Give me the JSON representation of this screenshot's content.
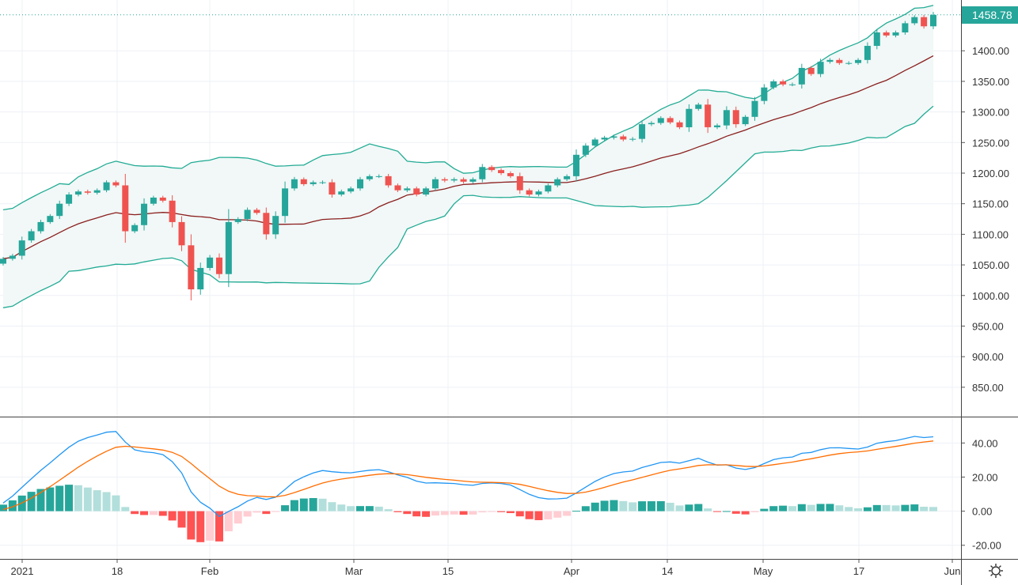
{
  "chart_data": [
    {
      "type": "candlestick",
      "indicators": [
        "Bollinger Bands (20, 2)",
        "SMA basis"
      ],
      "close": [
        1060,
        1065,
        1090,
        1105,
        1120,
        1130,
        1150,
        1165,
        1170,
        1168,
        1172,
        1185,
        1180,
        1105,
        1115,
        1150,
        1160,
        1155,
        1120,
        1082,
        1010,
        1045,
        1062,
        1035,
        1120,
        1125,
        1140,
        1135,
        1100,
        1130,
        1175,
        1190,
        1182,
        1185,
        1185,
        1165,
        1170,
        1175,
        1190,
        1195,
        1195,
        1180,
        1172,
        1175,
        1165,
        1175,
        1190,
        1188,
        1190,
        1186,
        1190,
        1210,
        1205,
        1200,
        1195,
        1172,
        1165,
        1170,
        1180,
        1190,
        1195,
        1230,
        1245,
        1255,
        1258,
        1260,
        1255,
        1256,
        1280,
        1282,
        1290,
        1283,
        1275,
        1305,
        1312,
        1275,
        1278,
        1303,
        1280,
        1292,
        1318,
        1340,
        1350,
        1345,
        1345,
        1372,
        1362,
        1382,
        1385,
        1380,
        1380,
        1385,
        1408,
        1430,
        1425,
        1430,
        1445,
        1455,
        1440,
        1458.78
      ],
      "first_open": 1052,
      "last_price": "1458.78",
      "ylim": [
        802,
        1483
      ],
      "y_ticks": [
        "1400.00",
        "1350.00",
        "1300.00",
        "1250.00",
        "1200.00",
        "1150.00",
        "1100.00",
        "1050.00",
        "1000.00",
        "950.00",
        "900.00",
        "850.00"
      ],
      "y_tick_values": [
        1400,
        1350,
        1300,
        1250,
        1200,
        1150,
        1100,
        1050,
        1000,
        950,
        900,
        850
      ],
      "grid": true
    },
    {
      "type": "macd",
      "ylim": [
        -28,
        55
      ],
      "y_ticks": [
        "40.00",
        "20.00",
        "0.00",
        "-20.00"
      ],
      "y_tick_values": [
        40,
        20,
        0,
        -20
      ],
      "grid": true
    }
  ],
  "time_axis": {
    "labels": [
      "2021",
      "18",
      "Feb",
      "Mar",
      "15",
      "Apr",
      "14",
      "May",
      "17",
      "Jun"
    ]
  },
  "colors": {
    "up": "#26a69a",
    "down": "#ef5350",
    "band": "#22ab94",
    "band_fill": "#f1f8f7",
    "basis": "#8b1e1e",
    "macd": "#2196f3",
    "signal": "#ff6d00",
    "hist_up_strong": "#26a69a",
    "hist_up_weak": "#b2dfdb",
    "hist_down_strong": "#ff5252",
    "hist_down_weak": "#ffcdd2",
    "grid": "#eef1f6",
    "price_label_bg": "#26a69a"
  },
  "icons": {
    "settings": "gear-icon"
  }
}
